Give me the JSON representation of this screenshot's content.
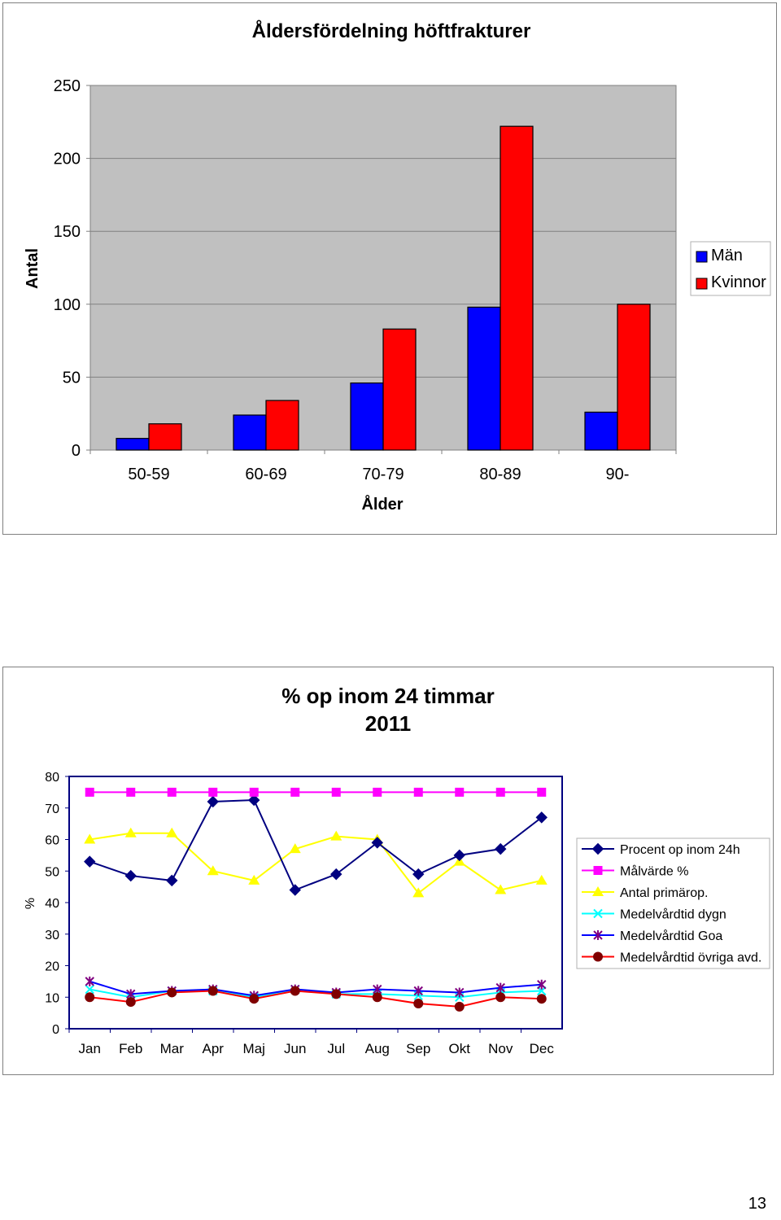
{
  "page": {
    "page_number": "13"
  },
  "colors": {
    "men": "#0000ff",
    "women": "#ff0000",
    "plot_bg": "#c0c0c0",
    "procent": "#000080",
    "malvarde": "#ff00ff",
    "antal": "#ffff00",
    "dygn": "#00ffff",
    "goa": "#800080",
    "ovriga": "#800000",
    "ovriga_line": "#ff0000"
  },
  "chart_data": [
    {
      "type": "bar",
      "title": "Åldersfördelning höftfrakturer",
      "xlabel": "Ålder",
      "ylabel": "Antal",
      "categories": [
        "50-59",
        "60-69",
        "70-79",
        "80-89",
        "90-"
      ],
      "series": [
        {
          "name": "Män",
          "values": [
            8,
            24,
            46,
            98,
            26
          ],
          "color": "#0000ff"
        },
        {
          "name": "Kvinnor",
          "values": [
            18,
            34,
            83,
            222,
            100
          ],
          "color": "#ff0000"
        }
      ],
      "ylim": [
        0,
        250
      ],
      "yticks": [
        "0",
        "50",
        "100",
        "150",
        "200",
        "250"
      ],
      "grid": true,
      "legend": "right"
    },
    {
      "type": "line",
      "title": "% op inom 24 timmar",
      "subtitle": "2011",
      "xlabel": "",
      "ylabel": "%",
      "categories": [
        "Jan",
        "Feb",
        "Mar",
        "Apr",
        "Maj",
        "Jun",
        "Jul",
        "Aug",
        "Sep",
        "Okt",
        "Nov",
        "Dec"
      ],
      "series": [
        {
          "name": "Procent op inom 24h",
          "marker": "diamond",
          "color": "#000080",
          "values": [
            53,
            48.5,
            47,
            72,
            72.5,
            44,
            49,
            59,
            49,
            55,
            57,
            67
          ]
        },
        {
          "name": "Målvärde %",
          "marker": "square",
          "color": "#ff00ff",
          "values": [
            75,
            75,
            75,
            75,
            75,
            75,
            75,
            75,
            75,
            75,
            75,
            75
          ]
        },
        {
          "name": "Antal primärop.",
          "marker": "triangle",
          "color": "#ffff00",
          "values": [
            60,
            62,
            62,
            50,
            47,
            57,
            61,
            60,
            43,
            53,
            44,
            47
          ]
        },
        {
          "name": "Medelvårdtid dygn",
          "marker": "x",
          "color": "#00ffff",
          "values": [
            12.5,
            10,
            12,
            12,
            10,
            12.5,
            11,
            11,
            10.5,
            10,
            11.5,
            12
          ]
        },
        {
          "name": "Medelvårdtid Goa",
          "marker": "star",
          "color": "#800080",
          "line_color": "#0000ff",
          "values": [
            15,
            11,
            12,
            12.5,
            10.5,
            12.5,
            11.5,
            12.5,
            12,
            11.5,
            13,
            14
          ]
        },
        {
          "name": "Medelvårdtid övriga avd.",
          "marker": "circle",
          "color": "#800000",
          "line_color": "#ff0000",
          "values": [
            10,
            8.5,
            11.5,
            12,
            9.5,
            12,
            11,
            10,
            8,
            7,
            10,
            9.5
          ]
        }
      ],
      "ylim": [
        0,
        80
      ],
      "yticks": [
        "0",
        "10",
        "20",
        "30",
        "40",
        "50",
        "60",
        "70",
        "80"
      ],
      "grid": false,
      "legend": "right"
    }
  ]
}
